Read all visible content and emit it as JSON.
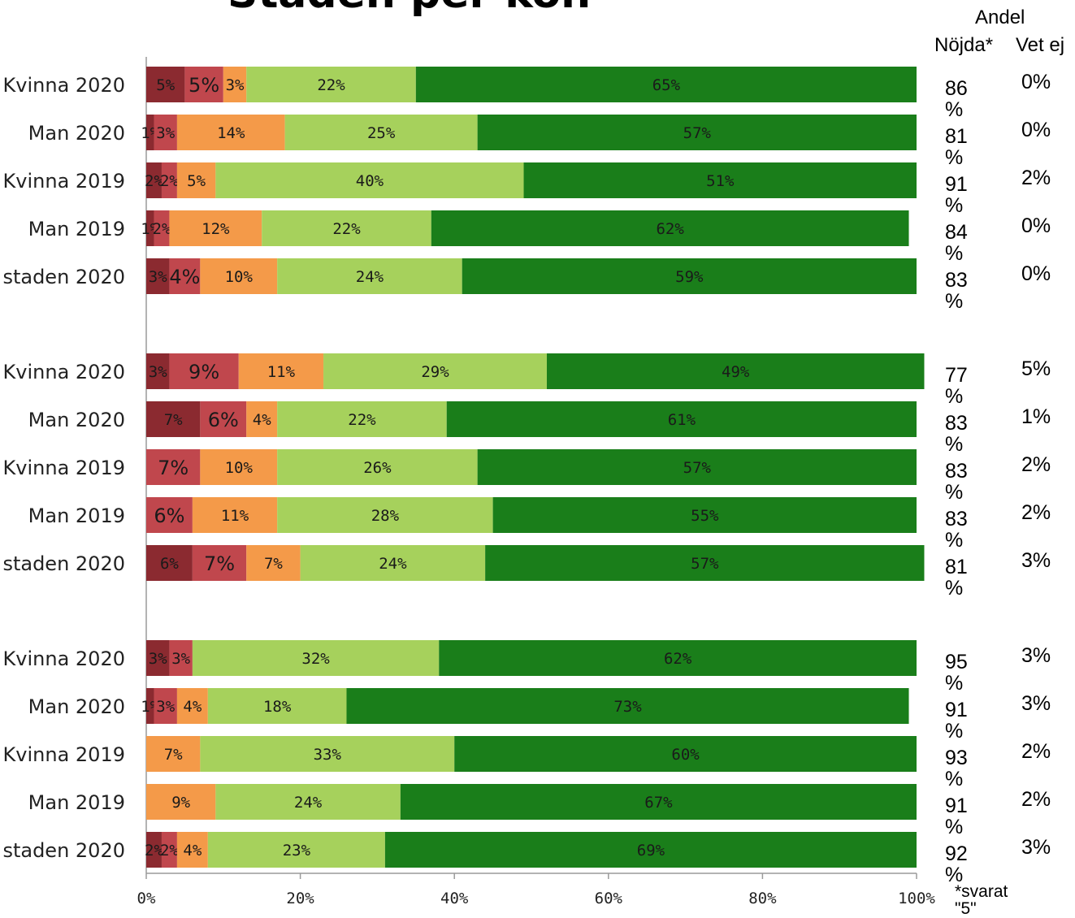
{
  "title": "Staden per kön",
  "headers": {
    "andel": "Andel",
    "nojda": "Nöjda*",
    "vet_ej": "Vet ej"
  },
  "footnote": [
    "*svarat",
    "\"5\""
  ],
  "colors": [
    "#8b2a30",
    "#c0474d",
    "#f49a49",
    "#a6d15c",
    "#1a7e1a"
  ],
  "chart_data": {
    "type": "bar",
    "orientation": "horizontal",
    "stacked": true,
    "xlim": [
      0,
      100
    ],
    "x_ticks": [
      "0%",
      "20%",
      "40%",
      "60%",
      "80%",
      "100%"
    ],
    "groups": [
      {
        "rows": [
          {
            "label": "Kvinna 2020",
            "segments": [
              5,
              5,
              3,
              22,
              65
            ],
            "labels": [
              "5%",
              "5%",
              "3%",
              "22%",
              "65%"
            ],
            "nojda": "86 %",
            "vet_ej": "0%"
          },
          {
            "label": "Man 2020",
            "segments": [
              1,
              3,
              14,
              25,
              57
            ],
            "labels": [
              "1%",
              "3%",
              "14%",
              "25%",
              "57%"
            ],
            "nojda": "81 %",
            "vet_ej": "0%"
          },
          {
            "label": "Kvinna 2019",
            "segments": [
              2,
              2,
              5,
              40,
              51
            ],
            "labels": [
              "2%",
              "2%",
              "5%",
              "40%",
              "51%"
            ],
            "nojda": "91 %",
            "vet_ej": "2%"
          },
          {
            "label": "Man 2019",
            "segments": [
              1,
              2,
              12,
              22,
              62
            ],
            "labels": [
              "1%",
              "2%",
              "12%",
              "22%",
              "62%"
            ],
            "nojda": "84 %",
            "vet_ej": "0%"
          },
          {
            "label": "staden 2020",
            "segments": [
              3,
              4,
              10,
              24,
              59
            ],
            "labels": [
              "3%",
              "4%",
              "10%",
              "24%",
              "59%"
            ],
            "nojda": "83 %",
            "vet_ej": "0%"
          }
        ]
      },
      {
        "rows": [
          {
            "label": "Kvinna 2020",
            "segments": [
              3,
              9,
              11,
              29,
              49
            ],
            "labels": [
              "3%",
              "9%",
              "11%",
              "29%",
              "49%"
            ],
            "nojda": "77 %",
            "vet_ej": "5%"
          },
          {
            "label": "Man 2020",
            "segments": [
              7,
              6,
              4,
              22,
              61
            ],
            "labels": [
              "7%",
              "6%",
              "4%",
              "22%",
              "61%"
            ],
            "nojda": "83 %",
            "vet_ej": "1%"
          },
          {
            "label": "Kvinna 2019",
            "segments": [
              0,
              7,
              10,
              26,
              57
            ],
            "labels": [
              "",
              "7%",
              "10%",
              "26%",
              "57%"
            ],
            "nojda": "83 %",
            "vet_ej": "2%"
          },
          {
            "label": "Man 2019",
            "segments": [
              0,
              6,
              11,
              28,
              55
            ],
            "labels": [
              "",
              "6%",
              "11%",
              "28%",
              "55%"
            ],
            "nojda": "83 %",
            "vet_ej": "2%"
          },
          {
            "label": "staden 2020",
            "segments": [
              6,
              7,
              7,
              24,
              57
            ],
            "labels": [
              "6%",
              "7%",
              "7%",
              "24%",
              "57%"
            ],
            "nojda": "81 %",
            "vet_ej": "3%"
          }
        ]
      },
      {
        "rows": [
          {
            "label": "Kvinna 2020",
            "segments": [
              3,
              3,
              0,
              32,
              62
            ],
            "labels": [
              "3%",
              "3%",
              "",
              "32%",
              "62%"
            ],
            "nojda": "95 %",
            "vet_ej": "3%"
          },
          {
            "label": "Man 2020",
            "segments": [
              1,
              3,
              4,
              18,
              73
            ],
            "labels": [
              "1%",
              "3%",
              "4%",
              "18%",
              "73%"
            ],
            "nojda": "91 %",
            "vet_ej": "3%"
          },
          {
            "label": "Kvinna 2019",
            "segments": [
              0,
              0,
              7,
              33,
              60
            ],
            "labels": [
              "",
              "",
              "7%",
              "33%",
              "60%"
            ],
            "nojda": "93 %",
            "vet_ej": "2%"
          },
          {
            "label": "Man 2019",
            "segments": [
              0,
              0,
              9,
              24,
              67
            ],
            "labels": [
              "",
              "",
              "9%",
              "24%",
              "67%"
            ],
            "nojda": "91 %",
            "vet_ej": "2%"
          },
          {
            "label": "staden 2020",
            "segments": [
              2,
              2,
              4,
              23,
              69
            ],
            "labels": [
              "2%",
              "2%",
              "4%",
              "23%",
              "69%"
            ],
            "nojda": "92 %",
            "vet_ej": "3%"
          }
        ]
      }
    ]
  }
}
